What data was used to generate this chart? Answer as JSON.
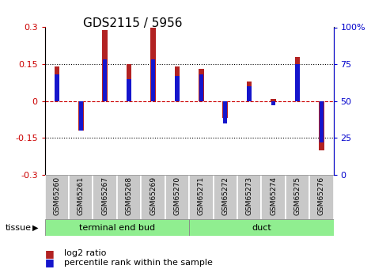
{
  "title": "GDS2115 / 5956",
  "samples": [
    "GSM65260",
    "GSM65261",
    "GSM65267",
    "GSM65268",
    "GSM65269",
    "GSM65270",
    "GSM65271",
    "GSM65272",
    "GSM65273",
    "GSM65274",
    "GSM65275",
    "GSM65276"
  ],
  "log2_ratio": [
    0.14,
    -0.12,
    0.29,
    0.15,
    0.3,
    0.14,
    0.13,
    -0.07,
    0.08,
    0.01,
    0.18,
    -0.2
  ],
  "percentile_rank": [
    68,
    30,
    78,
    65,
    78,
    67,
    68,
    35,
    60,
    47,
    75,
    22
  ],
  "groups": [
    {
      "label": "terminal end bud",
      "start": 0,
      "end": 6,
      "color": "#90EE90"
    },
    {
      "label": "duct",
      "start": 6,
      "end": 12,
      "color": "#90EE90"
    }
  ],
  "ylim": [
    -0.3,
    0.3
  ],
  "yticks_left": [
    -0.3,
    -0.15,
    0,
    0.15,
    0.3
  ],
  "yticks_right": [
    0,
    25,
    50,
    75,
    100
  ],
  "bar_color": "#B22222",
  "rank_color": "#1515CC",
  "rank_bar_width": 0.18,
  "bar_width": 0.22,
  "left_label_color": "#CC0000",
  "right_label_color": "#0000CC",
  "tissue_label": "tissue",
  "legend_log2": "log2 ratio",
  "legend_pct": "percentile rank within the sample",
  "sample_box_color": "#C8C8C8",
  "zero_line_color": "#CC0000",
  "hline_color": "#000000"
}
